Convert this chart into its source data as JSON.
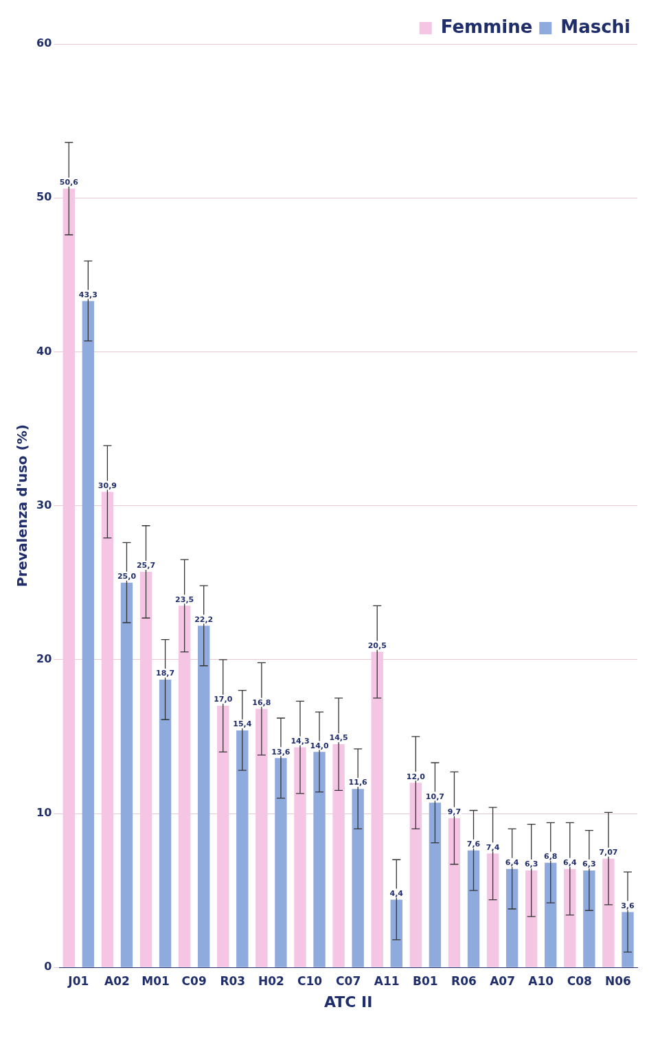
{
  "chart_data": {
    "type": "bar",
    "xlabel": "ATC II",
    "ylabel": "Prevalenza d'uso (%)",
    "categories": [
      "J01",
      "A02",
      "M01",
      "C09",
      "R03",
      "H02",
      "C10",
      "C07",
      "A11",
      "B01",
      "R06",
      "A07",
      "A10",
      "C08",
      "N06"
    ],
    "series": [
      {
        "name": "Femmine",
        "color": "#f4c6e4",
        "values": [
          50.6,
          30.9,
          25.7,
          23.5,
          17.0,
          16.8,
          14.3,
          14.5,
          20.5,
          12.0,
          9.7,
          7.4,
          6.3,
          6.4,
          7.07
        ],
        "errors": [
          3,
          3,
          3,
          3,
          3,
          3,
          3,
          3,
          3,
          3,
          3,
          3,
          3,
          3,
          3
        ],
        "value_labels": [
          "50,6",
          "30,9",
          "25,7",
          "23,5",
          "17,0",
          "16,8",
          "14,3",
          "14,5",
          "20,5",
          "12,0",
          "9,7",
          "7,4",
          "6,3",
          "6,4",
          "7,07"
        ]
      },
      {
        "name": "Maschi",
        "color": "#8faadc",
        "values": [
          43.3,
          25.0,
          18.7,
          22.2,
          15.4,
          13.6,
          14.0,
          11.6,
          4.4,
          10.7,
          7.6,
          6.4,
          6.8,
          6.3,
          3.6
        ],
        "errors": [
          2.6,
          2.6,
          2.6,
          2.6,
          2.6,
          2.6,
          2.6,
          2.6,
          2.6,
          2.6,
          2.6,
          2.6,
          2.6,
          2.6,
          2.6
        ],
        "value_labels": [
          "43,3",
          "25,0",
          "18,7",
          "22,2",
          "15,4",
          "13,6",
          "14,0",
          "11,6",
          "4,4",
          "10,7",
          "7,6",
          "6,4",
          "6,8",
          "6,3",
          "3,6"
        ]
      }
    ],
    "ylim": [
      0,
      60
    ],
    "yticks": [
      0,
      10,
      20,
      30,
      40,
      50,
      60
    ],
    "grid": "y",
    "legend": "top right"
  }
}
